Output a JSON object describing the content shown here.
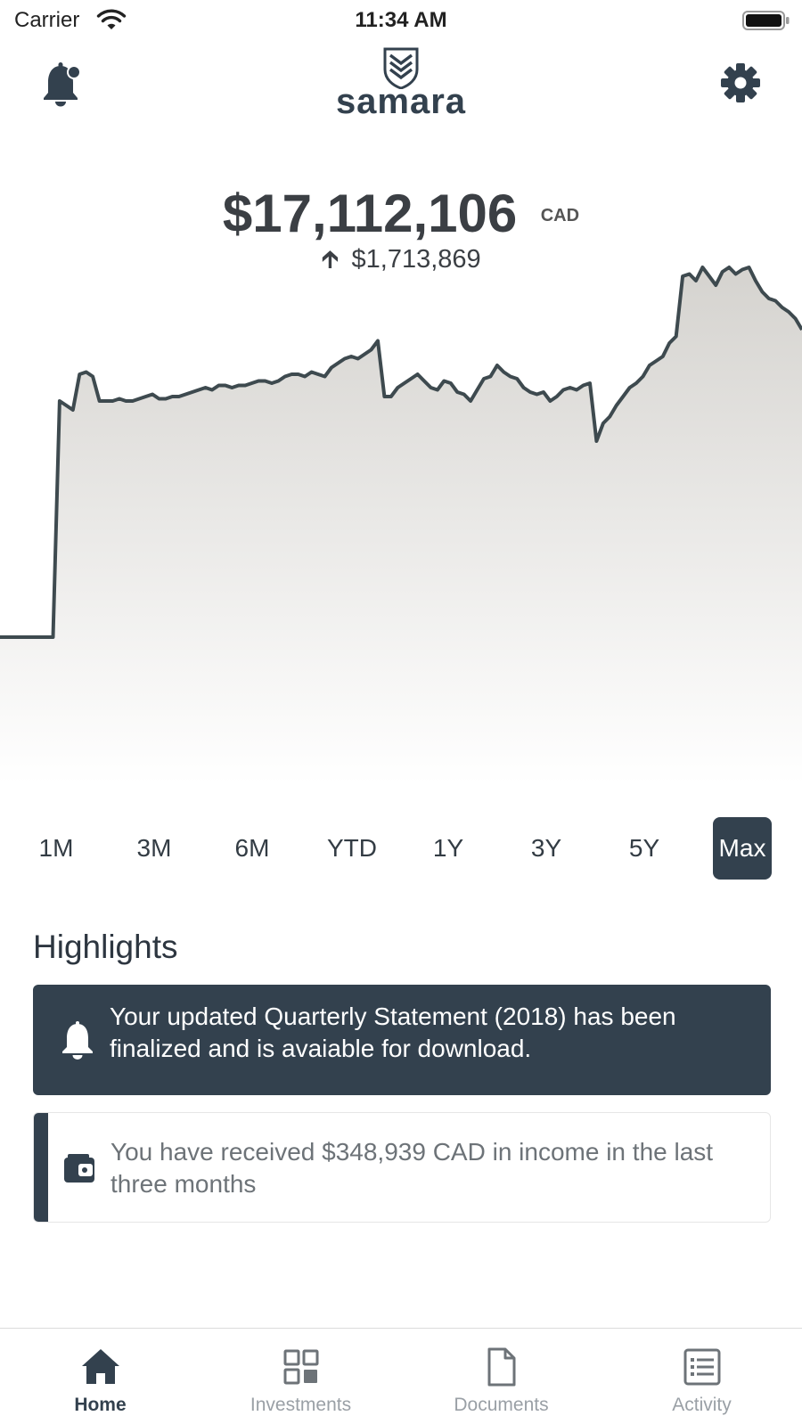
{
  "status_bar": {
    "carrier": "Carrier",
    "time": "11:34 AM"
  },
  "header": {
    "app_name": "samara",
    "icons": [
      "bell-icon",
      "gear-icon"
    ]
  },
  "balance": {
    "value": "$17,112,106",
    "currency": "CAD",
    "change": "$1,713,869",
    "change_direction": "up"
  },
  "chart_data": {
    "type": "area",
    "title": "",
    "line_color": "#3e4a4f",
    "fill_gradient": [
      "#d5d3cf",
      "#ffffff"
    ],
    "series": [
      {
        "values": [
          3.0,
          3.0,
          3.0,
          3.0,
          3.0,
          3.0,
          3.0,
          3.0,
          3.0,
          13.6,
          13.4,
          13.2,
          14.8,
          14.9,
          14.7,
          13.6,
          13.6,
          13.6,
          13.7,
          13.6,
          13.6,
          13.7,
          13.8,
          13.9,
          13.7,
          13.7,
          13.8,
          13.8,
          13.9,
          14.0,
          14.1,
          14.2,
          14.1,
          14.3,
          14.3,
          14.2,
          14.3,
          14.3,
          14.4,
          14.5,
          14.5,
          14.4,
          14.5,
          14.7,
          14.8,
          14.8,
          14.7,
          14.9,
          14.8,
          14.7,
          15.1,
          15.3,
          15.5,
          15.6,
          15.5,
          15.7,
          15.9,
          16.3,
          13.8,
          13.8,
          14.2,
          14.4,
          14.6,
          14.8,
          14.5,
          14.2,
          14.1,
          14.5,
          14.4,
          14.0,
          13.9,
          13.6,
          14.1,
          14.6,
          14.7,
          15.2,
          14.9,
          14.7,
          14.6,
          14.2,
          14.0,
          13.9,
          14.0,
          13.6,
          13.8,
          14.1,
          14.2,
          14.1,
          14.3,
          14.4,
          11.8,
          12.6,
          12.9,
          13.4,
          13.8,
          14.2,
          14.4,
          14.7,
          15.2,
          15.4,
          15.6,
          16.2,
          16.5,
          19.2,
          19.3,
          19.0,
          19.6,
          19.2,
          18.8,
          19.4,
          19.6,
          19.3,
          19.5,
          19.6,
          19.0,
          18.5,
          18.2,
          18.1,
          17.8,
          17.6,
          17.3,
          16.8
        ]
      }
    ],
    "selected_range": "Max"
  },
  "ranges": [
    "1M",
    "3M",
    "6M",
    "YTD",
    "1Y",
    "3Y",
    "5Y",
    "Max"
  ],
  "highlights": {
    "title": "Highlights",
    "cards": [
      {
        "icon": "bell-icon",
        "text": "Your updated Quarterly  Statement (2018) has been finalized and is avaiable for download."
      },
      {
        "icon": "wallet-icon",
        "text": "You have received $348,939 CAD in income in the last three months"
      }
    ]
  },
  "tabs": [
    {
      "label": "Home",
      "icon": "home-icon",
      "active": true
    },
    {
      "label": "Investments",
      "icon": "investments-icon",
      "active": false
    },
    {
      "label": "Documents",
      "icon": "documents-icon",
      "active": false
    },
    {
      "label": "Activity",
      "icon": "activity-icon",
      "active": false
    }
  ],
  "colors": {
    "primary": "#33414e",
    "inactive": "#9aa0a6"
  }
}
